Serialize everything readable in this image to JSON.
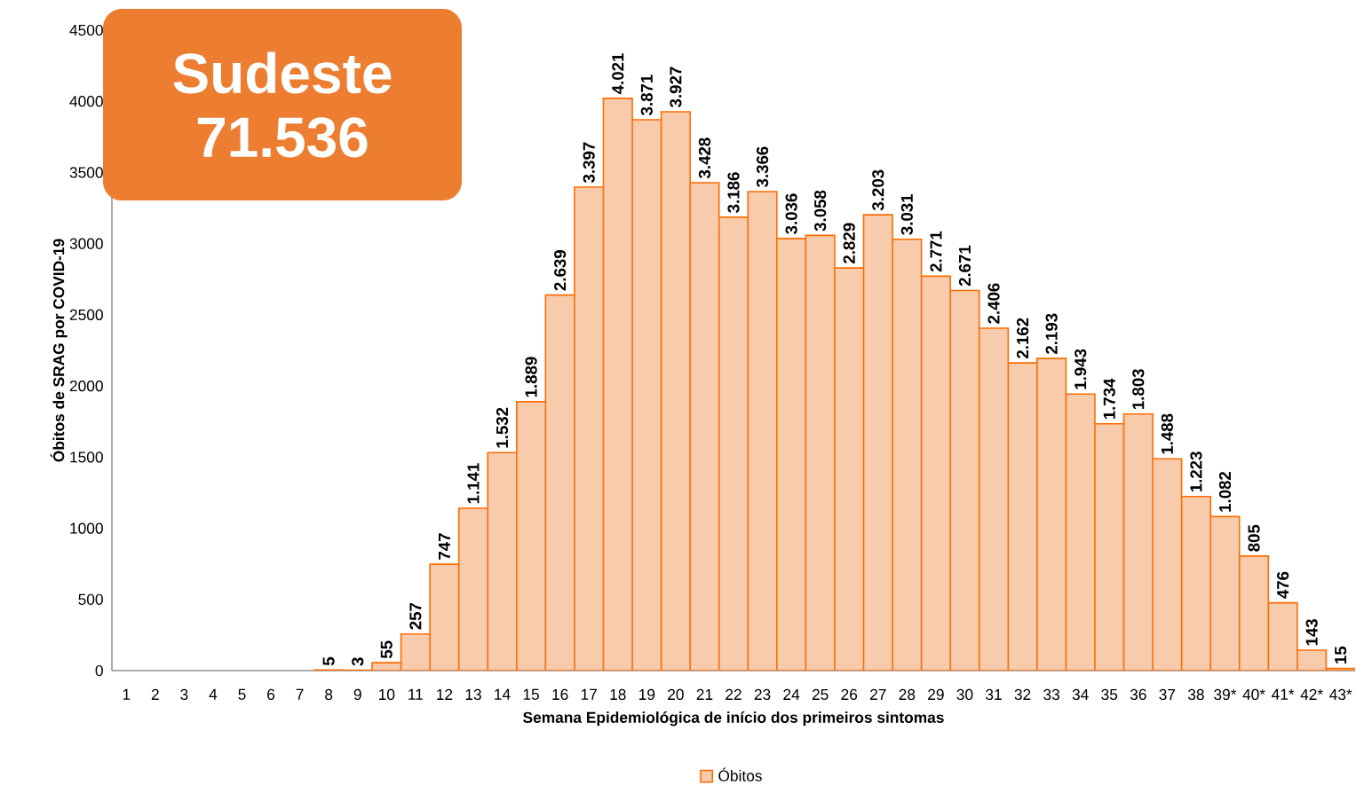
{
  "chart_data": {
    "type": "bar",
    "title": "Sudeste",
    "subtitle": "71.536",
    "xlabel": "Semana Epidemiológica de início dos primeiros sintomas",
    "ylabel": "Óbitos de SRAG por COVID-19",
    "categories": [
      "1",
      "2",
      "3",
      "4",
      "5",
      "6",
      "7",
      "8",
      "9",
      "10",
      "11",
      "12",
      "13",
      "14",
      "15",
      "16",
      "17",
      "18",
      "19",
      "20",
      "21",
      "22",
      "23",
      "24",
      "25",
      "26",
      "27",
      "28",
      "29",
      "30",
      "31",
      "32",
      "33",
      "34",
      "35",
      "36",
      "37",
      "38",
      "39*",
      "40*",
      "41*",
      "42*",
      "43*"
    ],
    "series": [
      {
        "name": "Óbitos",
        "color": "#f8cbad",
        "values": [
          null,
          null,
          null,
          null,
          null,
          null,
          null,
          5,
          3,
          55,
          257,
          747,
          1141,
          1532,
          1889,
          2639,
          3397,
          4021,
          3871,
          3927,
          3428,
          3186,
          3366,
          3036,
          3058,
          2829,
          3203,
          3031,
          2771,
          2671,
          2406,
          2162,
          2193,
          1943,
          1734,
          1803,
          1488,
          1223,
          1082,
          805,
          476,
          143,
          15
        ],
        "value_labels": [
          null,
          null,
          null,
          null,
          null,
          null,
          null,
          "5",
          "3",
          "55",
          "257",
          "747",
          "1.141",
          "1.532",
          "1.889",
          "2.639",
          "3.397",
          "4.021",
          "3.871",
          "3.927",
          "3.428",
          "3.186",
          "3.366",
          "3.036",
          "3.058",
          "2.829",
          "3.203",
          "3.031",
          "2.771",
          "2.671",
          "2.406",
          "2.162",
          "2.193",
          "1.943",
          "1.734",
          "1.803",
          "1.488",
          "1.223",
          "1.082",
          "805",
          "476",
          "143",
          "15"
        ]
      }
    ],
    "ylim": [
      0,
      4500
    ],
    "yticks": [
      0,
      500,
      1000,
      1500,
      2000,
      2500,
      3000,
      3500,
      4000,
      4500
    ],
    "grid": false,
    "legend": "bottom"
  }
}
